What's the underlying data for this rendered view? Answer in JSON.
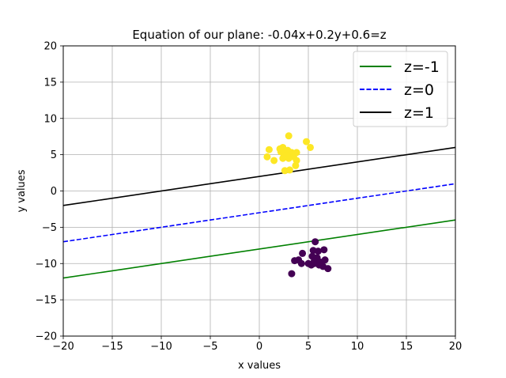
{
  "chart_data": {
    "type": "scatter",
    "title": "Equation of our plane: -0.04x+0.2y+0.6=z",
    "xlabel": "x values",
    "ylabel": "y values",
    "xlim": [
      -20,
      20
    ],
    "ylim": [
      -20,
      20
    ],
    "xticks": [
      -20,
      -15,
      -10,
      -5,
      0,
      5,
      10,
      15,
      20
    ],
    "yticks": [
      -20,
      -15,
      -10,
      -5,
      0,
      5,
      10,
      15,
      20
    ],
    "xtick_labels": [
      "−20",
      "−15",
      "−10",
      "−5",
      "0",
      "5",
      "10",
      "15",
      "20"
    ],
    "ytick_labels": [
      "−20",
      "−15",
      "−10",
      "−5",
      "0",
      "5",
      "10",
      "15",
      "20"
    ],
    "grid": true,
    "legend_position": "top-right",
    "lines": [
      {
        "name": "z=-1",
        "color": "#008000",
        "style": "solid",
        "x": [
          -20,
          20
        ],
        "y": [
          -12,
          -4
        ]
      },
      {
        "name": "z=0",
        "color": "#0000ff",
        "style": "dashed",
        "x": [
          -20,
          20
        ],
        "y": [
          -7,
          1
        ]
      },
      {
        "name": "z=1",
        "color": "#000000",
        "style": "solid",
        "x": [
          -20,
          20
        ],
        "y": [
          -2,
          6
        ]
      }
    ],
    "scatter_series": [
      {
        "color": "#fde725",
        "points": [
          [
            3.0,
            7.6
          ],
          [
            4.8,
            6.8
          ],
          [
            5.2,
            6.0
          ],
          [
            1.0,
            5.7
          ],
          [
            2.1,
            5.8
          ],
          [
            2.4,
            6.0
          ],
          [
            2.9,
            5.6
          ],
          [
            3.3,
            5.3
          ],
          [
            3.8,
            5.3
          ],
          [
            2.5,
            5.1
          ],
          [
            3.5,
            4.7
          ],
          [
            0.8,
            4.7
          ],
          [
            1.5,
            4.2
          ],
          [
            2.4,
            4.5
          ],
          [
            3.0,
            4.5
          ],
          [
            3.8,
            4.2
          ],
          [
            3.7,
            3.5
          ],
          [
            2.6,
            2.8
          ],
          [
            3.1,
            2.9
          ],
          [
            2.2,
            5.4
          ],
          [
            2.8,
            4.9
          ]
        ]
      },
      {
        "color": "#440154",
        "points": [
          [
            5.7,
            -7.0
          ],
          [
            5.5,
            -8.2
          ],
          [
            6.0,
            -8.3
          ],
          [
            6.6,
            -8.1
          ],
          [
            4.4,
            -8.6
          ],
          [
            5.4,
            -9.0
          ],
          [
            5.9,
            -9.2
          ],
          [
            4.0,
            -9.5
          ],
          [
            3.6,
            -9.6
          ],
          [
            6.7,
            -9.5
          ],
          [
            4.3,
            -10.0
          ],
          [
            5.0,
            -10.0
          ],
          [
            5.6,
            -10.0
          ],
          [
            6.1,
            -10.2
          ],
          [
            6.5,
            -10.4
          ],
          [
            5.3,
            -10.2
          ],
          [
            7.0,
            -10.7
          ],
          [
            3.3,
            -11.4
          ],
          [
            5.6,
            -9.7
          ],
          [
            6.2,
            -9.8
          ]
        ]
      }
    ]
  }
}
